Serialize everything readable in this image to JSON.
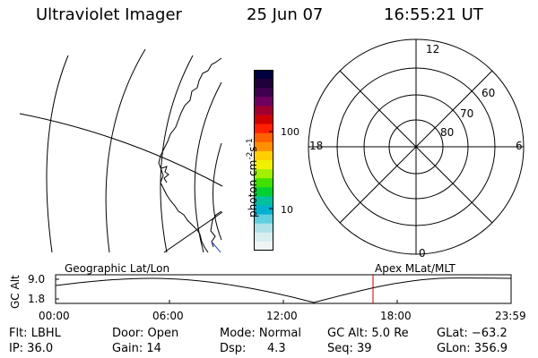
{
  "header": {
    "instrument": "Ultraviolet Imager",
    "date": "25 Jun 07",
    "time": "16:55:21 UT"
  },
  "colorbar": {
    "label_text": "photon cm",
    "label_sup1": "-2",
    "label_mid": "s",
    "label_sup2": "-1",
    "ticks": [
      "100",
      "10"
    ],
    "colors": [
      "#000040",
      "#20003a",
      "#400050",
      "#700060",
      "#a00030",
      "#d00000",
      "#ff2000",
      "#ff6000",
      "#ff9000",
      "#ffd000",
      "#f0f000",
      "#a0f000",
      "#40e000",
      "#00d030",
      "#00c0a0",
      "#00b0d0",
      "#60d0e0",
      "#b0e0e8",
      "#d8eef0",
      "#f0f4f4"
    ]
  },
  "polar": {
    "mlt_labels": {
      "top": "12",
      "left": "18",
      "right": "6",
      "bottom": "0"
    },
    "lat_labels": [
      "60",
      "70",
      "80"
    ]
  },
  "orbit_panel": {
    "left_title": "Geographic Lat/Lon",
    "right_title": "Apex MLat/MLT",
    "yaxis_label": "GC Alt",
    "y_ticks": [
      "9.0",
      "1.8"
    ],
    "x_ticks": [
      "00:00",
      "06:00",
      "12:00",
      "18:00",
      "23:59"
    ]
  },
  "info": {
    "row1": {
      "flt": "Flt: LBHL",
      "door": "Door: Open",
      "mode": "Mode: Normal",
      "gc_alt": "GC Alt: 5.0 Re",
      "glat": "GLat: −63.2"
    },
    "row2": {
      "ip": "IP: 36.0",
      "gain": "Gain: 14",
      "dsp_label": "Dsp:",
      "dsp_value": "4.3",
      "seq": "Seq: 39",
      "glon": "GLon: 356.9"
    }
  }
}
